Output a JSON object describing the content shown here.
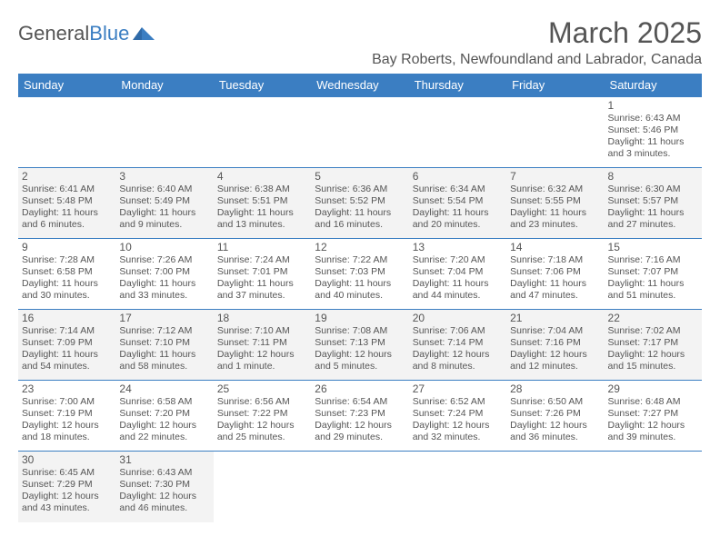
{
  "logo": {
    "text1": "General",
    "text2": "Blue"
  },
  "title": "March 2025",
  "location": "Bay Roberts, Newfoundland and Labrador, Canada",
  "colors": {
    "header_bg": "#3b7ec2",
    "header_fg": "#ffffff",
    "text": "#555555",
    "row_border": "#3b7ec2",
    "alt_row_bg": "#f3f3f3",
    "page_bg": "#ffffff"
  },
  "day_headers": [
    "Sunday",
    "Monday",
    "Tuesday",
    "Wednesday",
    "Thursday",
    "Friday",
    "Saturday"
  ],
  "weeks": [
    [
      null,
      null,
      null,
      null,
      null,
      null,
      {
        "n": "1",
        "sr": "Sunrise: 6:43 AM",
        "ss": "Sunset: 5:46 PM",
        "dl1": "Daylight: 11 hours",
        "dl2": "and 3 minutes."
      }
    ],
    [
      {
        "n": "2",
        "sr": "Sunrise: 6:41 AM",
        "ss": "Sunset: 5:48 PM",
        "dl1": "Daylight: 11 hours",
        "dl2": "and 6 minutes."
      },
      {
        "n": "3",
        "sr": "Sunrise: 6:40 AM",
        "ss": "Sunset: 5:49 PM",
        "dl1": "Daylight: 11 hours",
        "dl2": "and 9 minutes."
      },
      {
        "n": "4",
        "sr": "Sunrise: 6:38 AM",
        "ss": "Sunset: 5:51 PM",
        "dl1": "Daylight: 11 hours",
        "dl2": "and 13 minutes."
      },
      {
        "n": "5",
        "sr": "Sunrise: 6:36 AM",
        "ss": "Sunset: 5:52 PM",
        "dl1": "Daylight: 11 hours",
        "dl2": "and 16 minutes."
      },
      {
        "n": "6",
        "sr": "Sunrise: 6:34 AM",
        "ss": "Sunset: 5:54 PM",
        "dl1": "Daylight: 11 hours",
        "dl2": "and 20 minutes."
      },
      {
        "n": "7",
        "sr": "Sunrise: 6:32 AM",
        "ss": "Sunset: 5:55 PM",
        "dl1": "Daylight: 11 hours",
        "dl2": "and 23 minutes."
      },
      {
        "n": "8",
        "sr": "Sunrise: 6:30 AM",
        "ss": "Sunset: 5:57 PM",
        "dl1": "Daylight: 11 hours",
        "dl2": "and 27 minutes."
      }
    ],
    [
      {
        "n": "9",
        "sr": "Sunrise: 7:28 AM",
        "ss": "Sunset: 6:58 PM",
        "dl1": "Daylight: 11 hours",
        "dl2": "and 30 minutes."
      },
      {
        "n": "10",
        "sr": "Sunrise: 7:26 AM",
        "ss": "Sunset: 7:00 PM",
        "dl1": "Daylight: 11 hours",
        "dl2": "and 33 minutes."
      },
      {
        "n": "11",
        "sr": "Sunrise: 7:24 AM",
        "ss": "Sunset: 7:01 PM",
        "dl1": "Daylight: 11 hours",
        "dl2": "and 37 minutes."
      },
      {
        "n": "12",
        "sr": "Sunrise: 7:22 AM",
        "ss": "Sunset: 7:03 PM",
        "dl1": "Daylight: 11 hours",
        "dl2": "and 40 minutes."
      },
      {
        "n": "13",
        "sr": "Sunrise: 7:20 AM",
        "ss": "Sunset: 7:04 PM",
        "dl1": "Daylight: 11 hours",
        "dl2": "and 44 minutes."
      },
      {
        "n": "14",
        "sr": "Sunrise: 7:18 AM",
        "ss": "Sunset: 7:06 PM",
        "dl1": "Daylight: 11 hours",
        "dl2": "and 47 minutes."
      },
      {
        "n": "15",
        "sr": "Sunrise: 7:16 AM",
        "ss": "Sunset: 7:07 PM",
        "dl1": "Daylight: 11 hours",
        "dl2": "and 51 minutes."
      }
    ],
    [
      {
        "n": "16",
        "sr": "Sunrise: 7:14 AM",
        "ss": "Sunset: 7:09 PM",
        "dl1": "Daylight: 11 hours",
        "dl2": "and 54 minutes."
      },
      {
        "n": "17",
        "sr": "Sunrise: 7:12 AM",
        "ss": "Sunset: 7:10 PM",
        "dl1": "Daylight: 11 hours",
        "dl2": "and 58 minutes."
      },
      {
        "n": "18",
        "sr": "Sunrise: 7:10 AM",
        "ss": "Sunset: 7:11 PM",
        "dl1": "Daylight: 12 hours",
        "dl2": "and 1 minute."
      },
      {
        "n": "19",
        "sr": "Sunrise: 7:08 AM",
        "ss": "Sunset: 7:13 PM",
        "dl1": "Daylight: 12 hours",
        "dl2": "and 5 minutes."
      },
      {
        "n": "20",
        "sr": "Sunrise: 7:06 AM",
        "ss": "Sunset: 7:14 PM",
        "dl1": "Daylight: 12 hours",
        "dl2": "and 8 minutes."
      },
      {
        "n": "21",
        "sr": "Sunrise: 7:04 AM",
        "ss": "Sunset: 7:16 PM",
        "dl1": "Daylight: 12 hours",
        "dl2": "and 12 minutes."
      },
      {
        "n": "22",
        "sr": "Sunrise: 7:02 AM",
        "ss": "Sunset: 7:17 PM",
        "dl1": "Daylight: 12 hours",
        "dl2": "and 15 minutes."
      }
    ],
    [
      {
        "n": "23",
        "sr": "Sunrise: 7:00 AM",
        "ss": "Sunset: 7:19 PM",
        "dl1": "Daylight: 12 hours",
        "dl2": "and 18 minutes."
      },
      {
        "n": "24",
        "sr": "Sunrise: 6:58 AM",
        "ss": "Sunset: 7:20 PM",
        "dl1": "Daylight: 12 hours",
        "dl2": "and 22 minutes."
      },
      {
        "n": "25",
        "sr": "Sunrise: 6:56 AM",
        "ss": "Sunset: 7:22 PM",
        "dl1": "Daylight: 12 hours",
        "dl2": "and 25 minutes."
      },
      {
        "n": "26",
        "sr": "Sunrise: 6:54 AM",
        "ss": "Sunset: 7:23 PM",
        "dl1": "Daylight: 12 hours",
        "dl2": "and 29 minutes."
      },
      {
        "n": "27",
        "sr": "Sunrise: 6:52 AM",
        "ss": "Sunset: 7:24 PM",
        "dl1": "Daylight: 12 hours",
        "dl2": "and 32 minutes."
      },
      {
        "n": "28",
        "sr": "Sunrise: 6:50 AM",
        "ss": "Sunset: 7:26 PM",
        "dl1": "Daylight: 12 hours",
        "dl2": "and 36 minutes."
      },
      {
        "n": "29",
        "sr": "Sunrise: 6:48 AM",
        "ss": "Sunset: 7:27 PM",
        "dl1": "Daylight: 12 hours",
        "dl2": "and 39 minutes."
      }
    ],
    [
      {
        "n": "30",
        "sr": "Sunrise: 6:45 AM",
        "ss": "Sunset: 7:29 PM",
        "dl1": "Daylight: 12 hours",
        "dl2": "and 43 minutes."
      },
      {
        "n": "31",
        "sr": "Sunrise: 6:43 AM",
        "ss": "Sunset: 7:30 PM",
        "dl1": "Daylight: 12 hours",
        "dl2": "and 46 minutes."
      },
      null,
      null,
      null,
      null,
      null
    ]
  ]
}
